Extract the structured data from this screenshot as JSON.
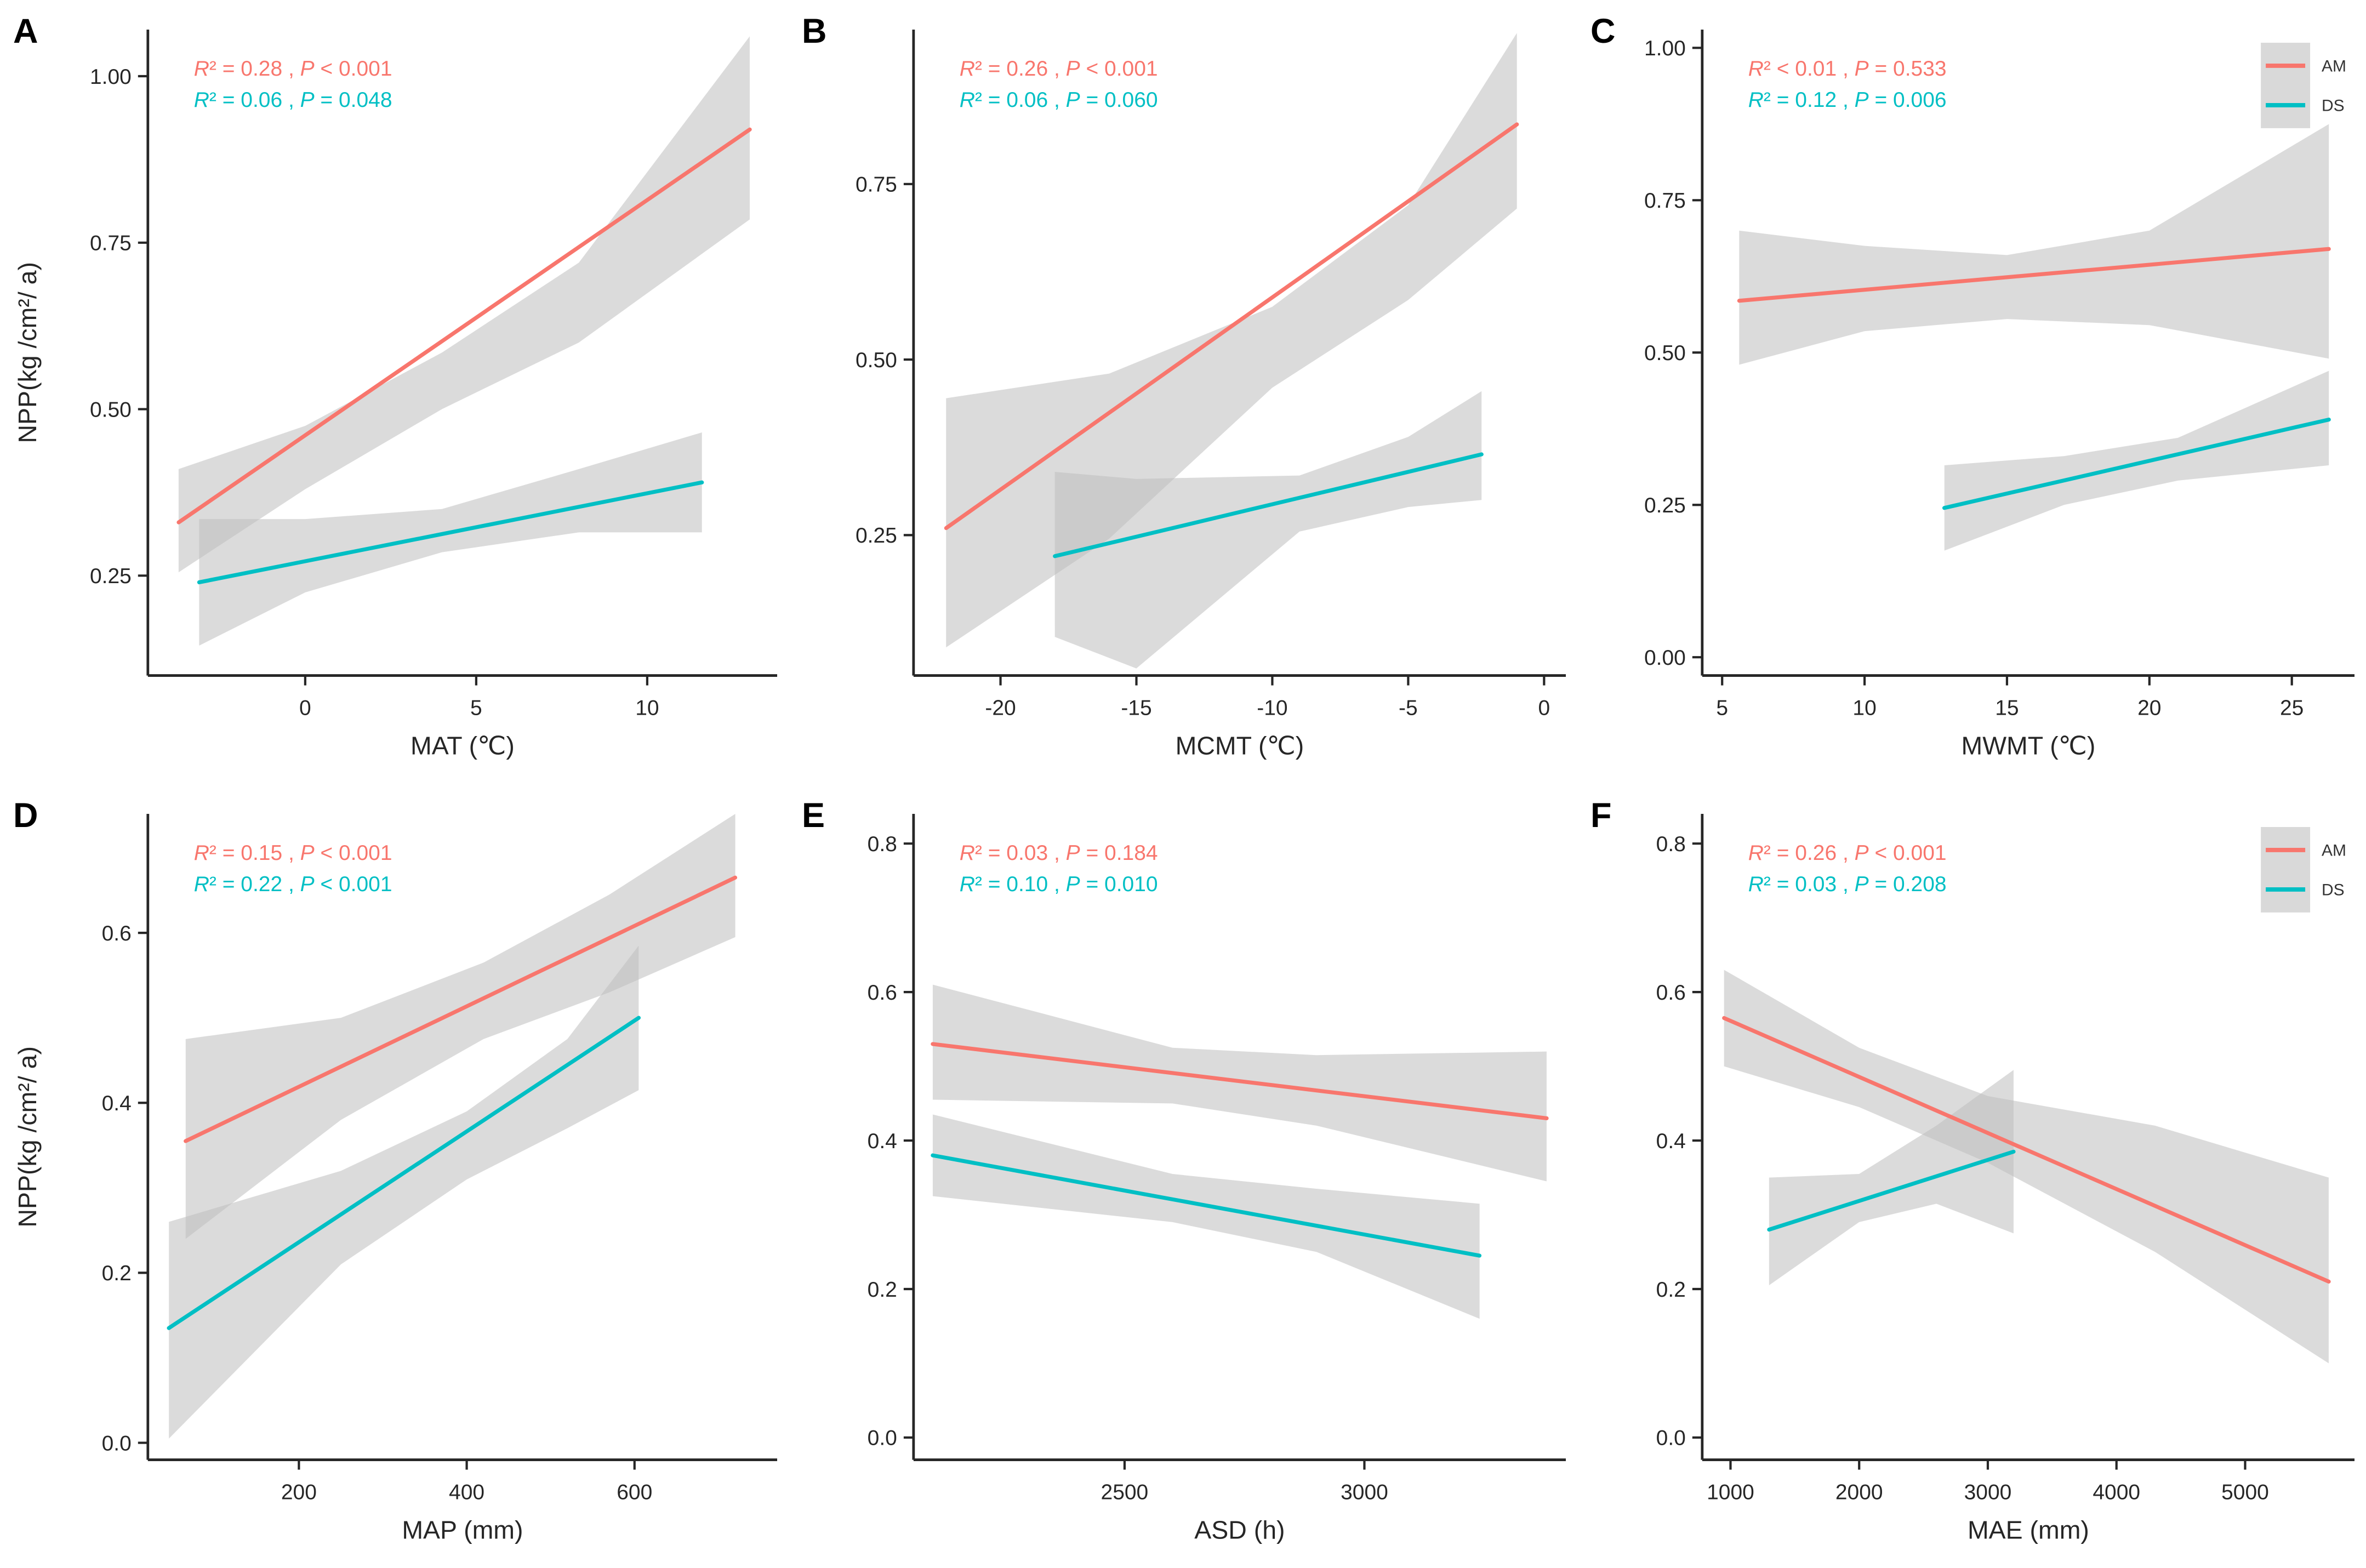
{
  "figure_background": "#ffffff",
  "palette": {
    "am": "#F8766D",
    "ds": "#00BFC4",
    "band": "#BEBEBE",
    "axis": "#262626",
    "text": "#262626",
    "legend_key": "#D9D9D9"
  },
  "chart_data": [
    {
      "id": "A",
      "type": "line",
      "letter": "A",
      "xlabel": "MAT (℃)",
      "ylabel": "NPP(kg /cm²/ a)",
      "xlim": [
        -4.6,
        13.8
      ],
      "ylim": [
        0.1,
        1.07
      ],
      "xticks": [
        {
          "v": 0,
          "label": "0"
        },
        {
          "v": 5,
          "label": "5"
        },
        {
          "v": 10,
          "label": "10"
        }
      ],
      "yticks": [
        {
          "v": 0.25,
          "label": "0.25"
        },
        {
          "v": 0.5,
          "label": "0.50"
        },
        {
          "v": 0.75,
          "label": "0.75"
        },
        {
          "v": 1.0,
          "label": "1.00"
        }
      ],
      "annotations": [
        {
          "text": "R² = 0.28 , P < 0.001",
          "series": "AM",
          "color": "#F8766D"
        },
        {
          "text": "R² = 0.06 , P = 0.048",
          "series": "DS",
          "color": "#00BFC4"
        }
      ],
      "legend": null,
      "series": [
        {
          "name": "AM",
          "color": "#F8766D",
          "line": {
            "x": [
              -3.7,
              13.0
            ],
            "y": [
              0.33,
              0.92
            ]
          },
          "band": [
            [
              -3.7,
              0.255,
              0.41
            ],
            [
              0,
              0.38,
              0.475
            ],
            [
              4,
              0.5,
              0.585
            ],
            [
              8,
              0.6,
              0.72
            ],
            [
              13,
              0.785,
              1.06
            ]
          ]
        },
        {
          "name": "DS",
          "color": "#00BFC4",
          "line": {
            "x": [
              -3.1,
              11.6
            ],
            "y": [
              0.24,
              0.39
            ]
          },
          "band": [
            [
              -3.1,
              0.145,
              0.335
            ],
            [
              0,
              0.225,
              0.335
            ],
            [
              4,
              0.285,
              0.35
            ],
            [
              8,
              0.315,
              0.41
            ],
            [
              11.6,
              0.315,
              0.465
            ]
          ]
        }
      ]
    },
    {
      "id": "B",
      "type": "line",
      "letter": "B",
      "xlabel": "MCMT (℃)",
      "ylabel": "",
      "xlim": [
        -23.2,
        0.8
      ],
      "ylim": [
        0.05,
        0.97
      ],
      "xticks": [
        {
          "v": -20,
          "label": "-20"
        },
        {
          "v": -15,
          "label": "-15"
        },
        {
          "v": -10,
          "label": "-10"
        },
        {
          "v": -5,
          "label": "-5"
        },
        {
          "v": 0,
          "label": "0"
        }
      ],
      "yticks": [
        {
          "v": 0.25,
          "label": "0.25"
        },
        {
          "v": 0.5,
          "label": "0.50"
        },
        {
          "v": 0.75,
          "label": "0.75"
        }
      ],
      "annotations": [
        {
          "text": "R² = 0.26 , P < 0.001",
          "series": "AM",
          "color": "#F8766D"
        },
        {
          "text": "R² = 0.06 , P = 0.060",
          "series": "DS",
          "color": "#00BFC4"
        }
      ],
      "legend": null,
      "series": [
        {
          "name": "AM",
          "color": "#F8766D",
          "line": {
            "x": [
              -22.0,
              -1.0
            ],
            "y": [
              0.26,
              0.835
            ]
          },
          "band": [
            [
              -22,
              0.09,
              0.445
            ],
            [
              -16,
              0.245,
              0.48
            ],
            [
              -10,
              0.46,
              0.575
            ],
            [
              -5,
              0.585,
              0.72
            ],
            [
              -1,
              0.715,
              0.965
            ]
          ]
        },
        {
          "name": "DS",
          "color": "#00BFC4",
          "line": {
            "x": [
              -18.0,
              -2.3
            ],
            "y": [
              0.22,
              0.365
            ]
          },
          "band": [
            [
              -18,
              0.105,
              0.34
            ],
            [
              -15,
              0.06,
              0.33
            ],
            [
              -9,
              0.255,
              0.335
            ],
            [
              -5,
              0.29,
              0.39
            ],
            [
              -2.3,
              0.3,
              0.455
            ]
          ]
        }
      ]
    },
    {
      "id": "C",
      "type": "line",
      "letter": "C",
      "xlabel": "MWMT (℃)",
      "ylabel": "",
      "xlim": [
        4.3,
        27.2
      ],
      "ylim": [
        -0.03,
        1.03
      ],
      "xticks": [
        {
          "v": 5,
          "label": "5"
        },
        {
          "v": 10,
          "label": "10"
        },
        {
          "v": 15,
          "label": "15"
        },
        {
          "v": 20,
          "label": "20"
        },
        {
          "v": 25,
          "label": "25"
        }
      ],
      "yticks": [
        {
          "v": 0.0,
          "label": "0.00"
        },
        {
          "v": 0.25,
          "label": "0.25"
        },
        {
          "v": 0.5,
          "label": "0.50"
        },
        {
          "v": 0.75,
          "label": "0.75"
        },
        {
          "v": 1.0,
          "label": "1.00"
        }
      ],
      "annotations": [
        {
          "text": "R² < 0.01 , P = 0.533",
          "series": "AM",
          "color": "#F8766D"
        },
        {
          "text": "R² = 0.12 , P = 0.006",
          "series": "DS",
          "color": "#00BFC4"
        }
      ],
      "legend": {
        "items": [
          {
            "label": "AM",
            "color": "#F8766D"
          },
          {
            "label": "DS",
            "color": "#00BFC4"
          }
        ]
      },
      "series": [
        {
          "name": "AM",
          "color": "#F8766D",
          "line": {
            "x": [
              5.6,
              26.3
            ],
            "y": [
              0.585,
              0.67
            ]
          },
          "band": [
            [
              5.6,
              0.48,
              0.7
            ],
            [
              10,
              0.535,
              0.675
            ],
            [
              15,
              0.555,
              0.66
            ],
            [
              20,
              0.545,
              0.7
            ],
            [
              26.3,
              0.49,
              0.875
            ]
          ]
        },
        {
          "name": "DS",
          "color": "#00BFC4",
          "line": {
            "x": [
              12.8,
              26.3
            ],
            "y": [
              0.245,
              0.39
            ]
          },
          "band": [
            [
              12.8,
              0.175,
              0.315
            ],
            [
              17,
              0.25,
              0.33
            ],
            [
              21,
              0.29,
              0.36
            ],
            [
              26.3,
              0.315,
              0.47
            ]
          ]
        }
      ]
    },
    {
      "id": "D",
      "type": "line",
      "letter": "D",
      "xlabel": "MAP (mm)",
      "ylabel": "NPP(kg /cm²/ a)",
      "xlim": [
        20,
        770
      ],
      "ylim": [
        -0.02,
        0.74
      ],
      "xticks": [
        {
          "v": 200,
          "label": "200"
        },
        {
          "v": 400,
          "label": "400"
        },
        {
          "v": 600,
          "label": "600"
        }
      ],
      "yticks": [
        {
          "v": 0.0,
          "label": "0.0"
        },
        {
          "v": 0.2,
          "label": "0.2"
        },
        {
          "v": 0.4,
          "label": "0.4"
        },
        {
          "v": 0.6,
          "label": "0.6"
        }
      ],
      "annotations": [
        {
          "text": "R² = 0.15 , P < 0.001",
          "series": "AM",
          "color": "#F8766D"
        },
        {
          "text": "R² = 0.22 , P < 0.001",
          "series": "DS",
          "color": "#00BFC4"
        }
      ],
      "legend": null,
      "series": [
        {
          "name": "AM",
          "color": "#F8766D",
          "line": {
            "x": [
              65,
              720
            ],
            "y": [
              0.355,
              0.665
            ]
          },
          "band": [
            [
              65,
              0.24,
              0.475
            ],
            [
              250,
              0.38,
              0.5
            ],
            [
              420,
              0.475,
              0.565
            ],
            [
              570,
              0.53,
              0.645
            ],
            [
              720,
              0.595,
              0.74
            ]
          ]
        },
        {
          "name": "DS",
          "color": "#00BFC4",
          "line": {
            "x": [
              45,
              605
            ],
            "y": [
              0.135,
              0.5
            ]
          },
          "band": [
            [
              45,
              0.005,
              0.26
            ],
            [
              250,
              0.21,
              0.32
            ],
            [
              400,
              0.31,
              0.39
            ],
            [
              520,
              0.37,
              0.475
            ],
            [
              605,
              0.415,
              0.585
            ]
          ]
        }
      ]
    },
    {
      "id": "E",
      "type": "line",
      "letter": "E",
      "xlabel": "ASD (h)",
      "ylabel": "",
      "xlim": [
        2060,
        3420
      ],
      "ylim": [
        -0.03,
        0.84
      ],
      "xticks": [
        {
          "v": 2500,
          "label": "2500"
        },
        {
          "v": 3000,
          "label": "3000"
        }
      ],
      "yticks": [
        {
          "v": 0.0,
          "label": "0.0"
        },
        {
          "v": 0.2,
          "label": "0.2"
        },
        {
          "v": 0.4,
          "label": "0.4"
        },
        {
          "v": 0.6,
          "label": "0.6"
        },
        {
          "v": 0.8,
          "label": "0.8"
        }
      ],
      "annotations": [
        {
          "text": "R² = 0.03 , P = 0.184",
          "series": "AM",
          "color": "#F8766D"
        },
        {
          "text": "R² = 0.10 , P = 0.010",
          "series": "DS",
          "color": "#00BFC4"
        }
      ],
      "legend": null,
      "series": [
        {
          "name": "AM",
          "color": "#F8766D",
          "line": {
            "x": [
              2100,
              3380
            ],
            "y": [
              0.53,
              0.43
            ]
          },
          "band": [
            [
              2100,
              0.455,
              0.61
            ],
            [
              2600,
              0.45,
              0.525
            ],
            [
              2900,
              0.42,
              0.515
            ],
            [
              3380,
              0.345,
              0.52
            ]
          ]
        },
        {
          "name": "DS",
          "color": "#00BFC4",
          "line": {
            "x": [
              2100,
              3240
            ],
            "y": [
              0.38,
              0.245
            ]
          },
          "band": [
            [
              2100,
              0.325,
              0.435
            ],
            [
              2600,
              0.29,
              0.355
            ],
            [
              2900,
              0.25,
              0.335
            ],
            [
              3240,
              0.16,
              0.315
            ]
          ]
        }
      ]
    },
    {
      "id": "F",
      "type": "line",
      "letter": "F",
      "xlabel": "MAE (mm)",
      "ylabel": "",
      "xlim": [
        780,
        5850
      ],
      "ylim": [
        -0.03,
        0.84
      ],
      "xticks": [
        {
          "v": 1000,
          "label": "1000"
        },
        {
          "v": 2000,
          "label": "2000"
        },
        {
          "v": 3000,
          "label": "3000"
        },
        {
          "v": 4000,
          "label": "4000"
        },
        {
          "v": 5000,
          "label": "5000"
        }
      ],
      "yticks": [
        {
          "v": 0.0,
          "label": "0.0"
        },
        {
          "v": 0.2,
          "label": "0.2"
        },
        {
          "v": 0.4,
          "label": "0.4"
        },
        {
          "v": 0.6,
          "label": "0.6"
        },
        {
          "v": 0.8,
          "label": "0.8"
        }
      ],
      "annotations": [
        {
          "text": "R² = 0.26 , P < 0.001",
          "series": "AM",
          "color": "#F8766D"
        },
        {
          "text": "R² = 0.03 , P = 0.208",
          "series": "DS",
          "color": "#00BFC4"
        }
      ],
      "legend": {
        "items": [
          {
            "label": "AM",
            "color": "#F8766D"
          },
          {
            "label": "DS",
            "color": "#00BFC4"
          }
        ]
      },
      "series": [
        {
          "name": "AM",
          "color": "#F8766D",
          "line": {
            "x": [
              950,
              5650
            ],
            "y": [
              0.565,
              0.21
            ]
          },
          "band": [
            [
              950,
              0.5,
              0.63
            ],
            [
              2000,
              0.445,
              0.525
            ],
            [
              3000,
              0.37,
              0.46
            ],
            [
              4300,
              0.25,
              0.42
            ],
            [
              5650,
              0.1,
              0.35
            ]
          ]
        },
        {
          "name": "DS",
          "color": "#00BFC4",
          "line": {
            "x": [
              1300,
              3200
            ],
            "y": [
              0.28,
              0.385
            ]
          },
          "band": [
            [
              1300,
              0.205,
              0.35
            ],
            [
              2000,
              0.29,
              0.355
            ],
            [
              2600,
              0.315,
              0.42
            ],
            [
              3200,
              0.275,
              0.495
            ]
          ]
        }
      ]
    }
  ]
}
